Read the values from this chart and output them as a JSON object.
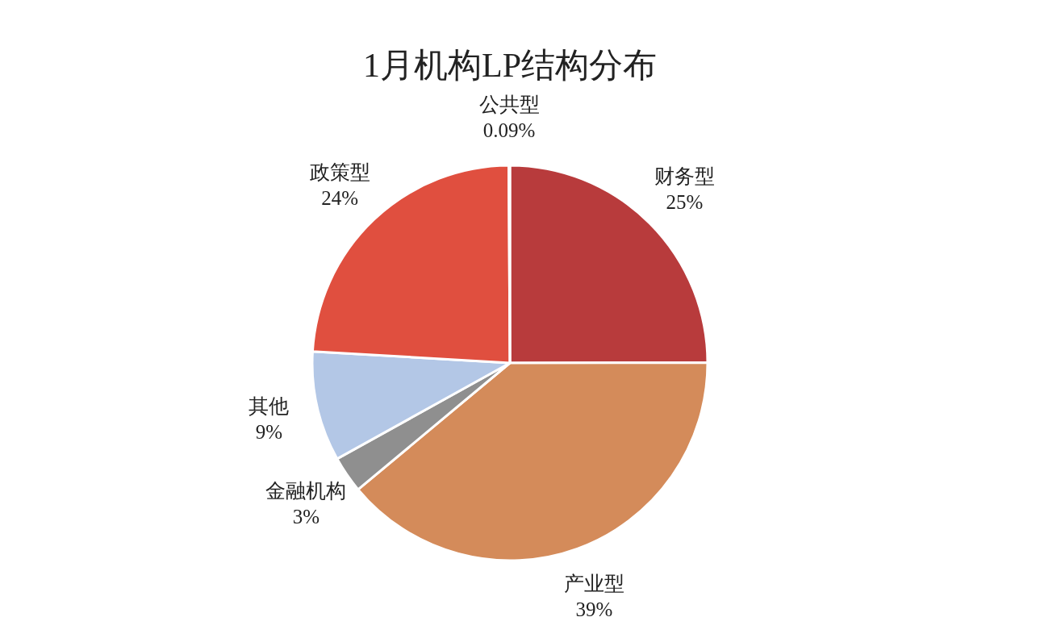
{
  "chart_data": {
    "type": "pie",
    "title": "1月机构LP结构分布",
    "categories": [
      "财务型",
      "产业型",
      "金融机构",
      "其他",
      "政策型",
      "公共型"
    ],
    "values": [
      25,
      39,
      3,
      9,
      24,
      0.09
    ],
    "colors": [
      "#b83b3c",
      "#d48b5a",
      "#8f8f8f",
      "#b3c7e6",
      "#e04f3f",
      "#c9c9c9"
    ],
    "value_labels": [
      "25%",
      "39%",
      "3%",
      "9%",
      "24%",
      "0.09%"
    ]
  }
}
